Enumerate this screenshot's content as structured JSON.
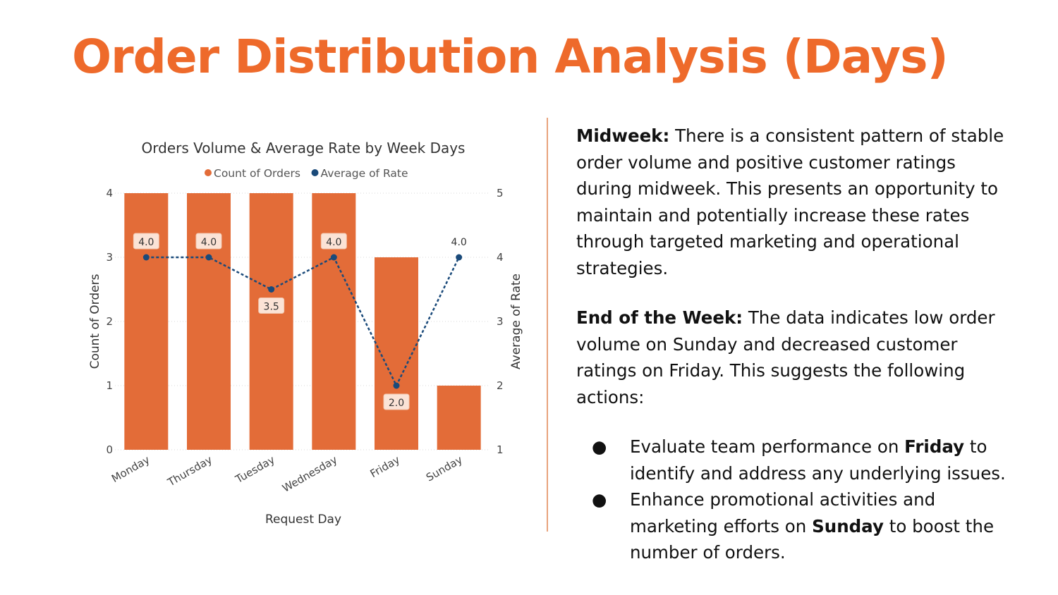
{
  "slide": {
    "title": "Order Distribution Analysis (Days)",
    "accent_color": "#ee6a2b"
  },
  "chart_data": {
    "type": "bar",
    "title": "Orders Volume & Average Rate by Week Days",
    "legend": [
      {
        "name": "Count of Orders",
        "color": "#e36c38",
        "marker": "circle"
      },
      {
        "name": "Average of Rate",
        "color": "#1a4a7a",
        "marker": "circle"
      }
    ],
    "legend_position": "top-center",
    "categories": [
      "Monday",
      "Thursday",
      "Tuesday",
      "Wednesday",
      "Friday",
      "Sunday"
    ],
    "series": [
      {
        "name": "Count of Orders",
        "type": "bar",
        "axis": "left",
        "color": "#e36c38",
        "values": [
          4,
          4,
          4,
          4,
          3,
          1
        ]
      },
      {
        "name": "Average of Rate",
        "type": "line",
        "axis": "right",
        "style": "dashed",
        "color": "#1a4a7a",
        "values": [
          4.0,
          4.0,
          3.5,
          4.0,
          2.0,
          4.0
        ]
      }
    ],
    "data_labels": [
      "4.0",
      "4.0",
      "3.5",
      "4.0",
      "2.0",
      "4.0"
    ],
    "xlabel": "Request Day",
    "ylabel": "Count of Orders",
    "y2label": "Average of Rate",
    "ylim": [
      0,
      4
    ],
    "y2lim": [
      1,
      5
    ],
    "yticks": [
      "0",
      "1",
      "2",
      "3",
      "4"
    ],
    "y2ticks": [
      "1",
      "2",
      "3",
      "4",
      "5"
    ],
    "grid": true
  },
  "insights": {
    "midweek": {
      "heading": "Midweek:",
      "body": "There is a consistent pattern of stable order volume and positive customer ratings during midweek. This presents an opportunity to maintain and potentially increase these rates through targeted marketing and operational strategies."
    },
    "end_of_week": {
      "heading": "End of the Week:",
      "body": "The data indicates low order volume on Sunday and decreased customer ratings on Friday. This suggests the following actions:"
    },
    "bullet_marker": "●",
    "actions": [
      {
        "before": "Evaluate team performance on",
        "bold": "Friday",
        "after": "to identify and address any underlying issues."
      },
      {
        "before": "Enhance promotional activities and marketing efforts on",
        "bold": "Sunday",
        "after": "to boost the number of orders."
      }
    ]
  }
}
